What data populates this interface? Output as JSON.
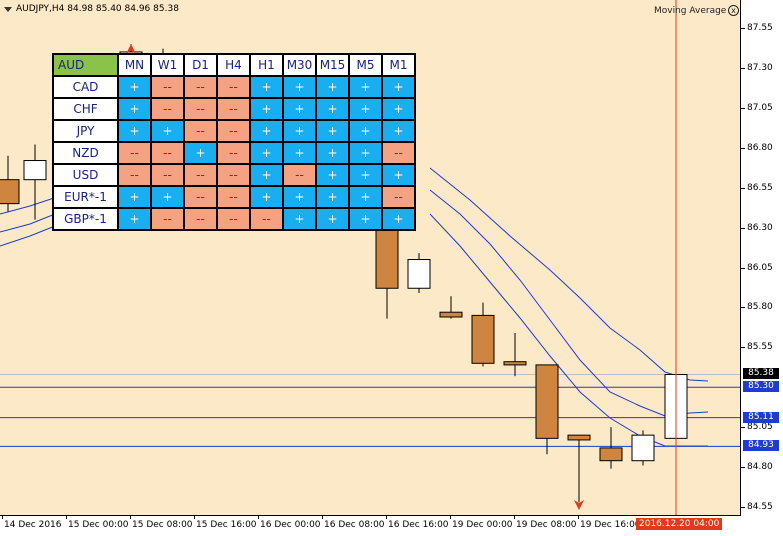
{
  "header": {
    "symbol_info": "AUDJPY,H4  84.98 85.40 84.96 85.38",
    "indicator_name": "Moving Average",
    "close_glyph": "x"
  },
  "matrix": {
    "corner": "AUD",
    "timeframes": [
      "MN",
      "W1",
      "D1",
      "H4",
      "H1",
      "M30",
      "M15",
      "M5",
      "M1"
    ],
    "rows": [
      {
        "label": "CAD",
        "cells": [
          "+",
          "--",
          "--",
          "--",
          "+",
          "+",
          "+",
          "+",
          "+"
        ]
      },
      {
        "label": "CHF",
        "cells": [
          "+",
          "--",
          "--",
          "--",
          "+",
          "+",
          "+",
          "+",
          "+"
        ]
      },
      {
        "label": "JPY",
        "cells": [
          "+",
          "+",
          "--",
          "--",
          "+",
          "+",
          "+",
          "+",
          "+"
        ]
      },
      {
        "label": "NZD",
        "cells": [
          "--",
          "--",
          "+",
          "--",
          "+",
          "+",
          "+",
          "+",
          "--"
        ]
      },
      {
        "label": "USD",
        "cells": [
          "--",
          "--",
          "--",
          "--",
          "+",
          "--",
          "+",
          "+",
          "+"
        ]
      },
      {
        "label": "EUR*-1",
        "cells": [
          "+",
          "+",
          "--",
          "--",
          "+",
          "+",
          "+",
          "+",
          "--"
        ]
      },
      {
        "label": "GBP*-1",
        "cells": [
          "+",
          "--",
          "--",
          "--",
          "--",
          "+",
          "+",
          "+",
          "+"
        ]
      }
    ],
    "colors": {
      "plus": "#18aeef",
      "minus": "#f5a283",
      "corner": "#8bc34a"
    }
  },
  "price_axis": {
    "labels": [
      "87.55",
      "87.30",
      "87.05",
      "86.80",
      "86.55",
      "86.30",
      "86.05",
      "85.80",
      "85.55",
      "85.05",
      "84.80",
      "84.55"
    ],
    "badges": [
      {
        "text": "85.38",
        "color": "#000000"
      },
      {
        "text": "85.30",
        "color": "#1e3cd0"
      },
      {
        "text": "85.11",
        "color": "#1e3cd0"
      },
      {
        "text": "84.93",
        "color": "#1e3cd0"
      }
    ]
  },
  "time_axis": {
    "labels": [
      "14 Dec 2016",
      "15 Dec 00:00",
      "15 Dec 08:00",
      "15 Dec 16:00",
      "16 Dec 00:00",
      "16 Dec 08:00",
      "16 Dec 16:00",
      "19 Dec 00:00",
      "19 Dec 08:00",
      "19 Dec 16:00"
    ],
    "current": "2016.12.20 04:00"
  },
  "chart_data": {
    "type": "candlestick",
    "visible_candles": [
      {
        "o": 86.6,
        "h": 86.75,
        "l": 86.4,
        "c": 86.45
      },
      {
        "o": 86.6,
        "h": 86.82,
        "l": 86.35,
        "c": 86.72
      },
      {
        "o": 87.32,
        "h": 87.45,
        "l": 87.32,
        "c": 87.4
      },
      {
        "o": 87.38,
        "h": 87.42,
        "l": 87.36,
        "c": 87.37
      },
      {
        "o": 86.32,
        "h": 86.32,
        "l": 85.73,
        "c": 85.92
      },
      {
        "o": 85.92,
        "h": 86.14,
        "l": 85.89,
        "c": 86.1
      },
      {
        "o": 85.77,
        "h": 85.87,
        "l": 85.73,
        "c": 85.74
      },
      {
        "o": 85.75,
        "h": 85.83,
        "l": 85.43,
        "c": 85.45
      },
      {
        "o": 85.46,
        "h": 85.64,
        "l": 85.37,
        "c": 85.44
      },
      {
        "o": 85.44,
        "h": 85.44,
        "l": 84.88,
        "c": 84.98
      },
      {
        "o": 85.0,
        "h": 85.0,
        "l": 84.58,
        "c": 84.97
      },
      {
        "o": 84.92,
        "h": 85.05,
        "l": 84.79,
        "c": 84.84
      },
      {
        "o": 84.84,
        "h": 85.03,
        "l": 84.81,
        "c": 85.0
      },
      {
        "o": 84.98,
        "h": 85.4,
        "l": 84.96,
        "c": 85.38
      }
    ],
    "moving_averages_last": [
      85.3,
      85.11,
      84.93
    ],
    "horizontal_lines": [
      85.3,
      85.11,
      84.93
    ],
    "ylim": [
      84.5,
      87.6
    ],
    "colors": {
      "bull": "#ffffff",
      "bear": "#cd853f",
      "ma": "#1e3cd0",
      "cursor": "#e03a1a"
    }
  }
}
